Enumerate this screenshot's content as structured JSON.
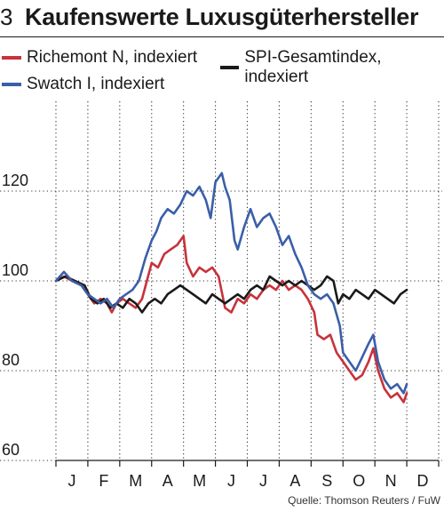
{
  "header": {
    "number": "3",
    "title": "Kaufenswerte Luxusgüterhersteller"
  },
  "source": "Quelle: Thomson Reuters / FuW",
  "chart_data": {
    "type": "line",
    "title": "Kaufenswerte Luxusgüterhersteller",
    "xlabel": "",
    "ylabel": "",
    "x_ticks": [
      "J",
      "F",
      "M",
      "A",
      "M",
      "J",
      "J",
      "A",
      "S",
      "O",
      "N",
      "D"
    ],
    "x_range": [
      0,
      12
    ],
    "y_ticks": [
      60,
      80,
      100,
      120
    ],
    "ylim": [
      60,
      140
    ],
    "grid": {
      "vertical": true,
      "horizontal": true,
      "style": "dotted"
    },
    "legend_placement": "top",
    "series": [
      {
        "name": "Richemont N, indexiert",
        "color": "#c8323a",
        "points": [
          [
            0.0,
            100
          ],
          [
            0.25,
            101
          ],
          [
            0.5,
            100
          ],
          [
            0.8,
            99
          ],
          [
            1.0,
            97
          ],
          [
            1.2,
            95
          ],
          [
            1.4,
            96
          ],
          [
            1.6,
            95
          ],
          [
            1.75,
            93
          ],
          [
            1.9,
            95
          ],
          [
            2.1,
            96
          ],
          [
            2.3,
            95
          ],
          [
            2.5,
            94
          ],
          [
            2.7,
            96
          ],
          [
            2.85,
            100
          ],
          [
            3.0,
            104
          ],
          [
            3.2,
            103
          ],
          [
            3.4,
            106
          ],
          [
            3.6,
            107
          ],
          [
            3.8,
            108
          ],
          [
            4.0,
            110
          ],
          [
            4.1,
            104
          ],
          [
            4.3,
            101
          ],
          [
            4.5,
            103
          ],
          [
            4.7,
            102
          ],
          [
            4.9,
            103
          ],
          [
            5.1,
            101
          ],
          [
            5.3,
            94
          ],
          [
            5.5,
            93
          ],
          [
            5.7,
            96
          ],
          [
            5.9,
            95
          ],
          [
            6.1,
            97
          ],
          [
            6.3,
            96
          ],
          [
            6.5,
            98
          ],
          [
            6.7,
            99
          ],
          [
            6.9,
            98
          ],
          [
            7.1,
            100
          ],
          [
            7.3,
            98
          ],
          [
            7.5,
            99
          ],
          [
            7.7,
            98
          ],
          [
            7.9,
            96
          ],
          [
            8.1,
            93
          ],
          [
            8.2,
            88
          ],
          [
            8.4,
            87
          ],
          [
            8.6,
            88
          ],
          [
            8.8,
            84
          ],
          [
            9.0,
            82
          ],
          [
            9.2,
            80
          ],
          [
            9.4,
            78
          ],
          [
            9.6,
            79
          ],
          [
            9.8,
            82
          ],
          [
            9.95,
            85
          ],
          [
            10.1,
            80
          ],
          [
            10.3,
            76
          ],
          [
            10.5,
            74
          ],
          [
            10.7,
            75
          ],
          [
            10.9,
            73
          ],
          [
            11.0,
            75
          ]
        ]
      },
      {
        "name": "SPI-Gesamtindex, indexiert",
        "color": "#1a1a1a",
        "points": [
          [
            0.0,
            100
          ],
          [
            0.3,
            101
          ],
          [
            0.6,
            100
          ],
          [
            0.9,
            99
          ],
          [
            1.1,
            96
          ],
          [
            1.3,
            95
          ],
          [
            1.5,
            96
          ],
          [
            1.7,
            94
          ],
          [
            1.9,
            95
          ],
          [
            2.1,
            94
          ],
          [
            2.3,
            96
          ],
          [
            2.5,
            95
          ],
          [
            2.7,
            93
          ],
          [
            2.9,
            95
          ],
          [
            3.1,
            96
          ],
          [
            3.3,
            95
          ],
          [
            3.5,
            97
          ],
          [
            3.7,
            98
          ],
          [
            3.9,
            99
          ],
          [
            4.1,
            98
          ],
          [
            4.3,
            97
          ],
          [
            4.5,
            96
          ],
          [
            4.7,
            95
          ],
          [
            4.9,
            97
          ],
          [
            5.1,
            96
          ],
          [
            5.3,
            95
          ],
          [
            5.5,
            96
          ],
          [
            5.7,
            97
          ],
          [
            5.9,
            96
          ],
          [
            6.1,
            98
          ],
          [
            6.3,
            99
          ],
          [
            6.5,
            98
          ],
          [
            6.7,
            101
          ],
          [
            6.9,
            100
          ],
          [
            7.1,
            99
          ],
          [
            7.3,
            100
          ],
          [
            7.5,
            99
          ],
          [
            7.7,
            100
          ],
          [
            7.9,
            99
          ],
          [
            8.1,
            98
          ],
          [
            8.3,
            99
          ],
          [
            8.5,
            101
          ],
          [
            8.7,
            100
          ],
          [
            8.85,
            95
          ],
          [
            9.0,
            97
          ],
          [
            9.2,
            96
          ],
          [
            9.4,
            98
          ],
          [
            9.6,
            97
          ],
          [
            9.8,
            96
          ],
          [
            10.0,
            98
          ],
          [
            10.2,
            97
          ],
          [
            10.4,
            96
          ],
          [
            10.6,
            95
          ],
          [
            10.8,
            97
          ],
          [
            11.0,
            98
          ]
        ]
      },
      {
        "name": "Swatch I, indexiert",
        "color": "#3a5fa8",
        "points": [
          [
            0.0,
            100
          ],
          [
            0.25,
            102
          ],
          [
            0.5,
            100
          ],
          [
            0.8,
            99
          ],
          [
            1.0,
            97
          ],
          [
            1.2,
            96
          ],
          [
            1.4,
            95
          ],
          [
            1.6,
            96
          ],
          [
            1.8,
            94
          ],
          [
            2.0,
            96
          ],
          [
            2.2,
            97
          ],
          [
            2.4,
            98
          ],
          [
            2.6,
            100
          ],
          [
            2.8,
            105
          ],
          [
            3.0,
            109
          ],
          [
            3.15,
            111
          ],
          [
            3.3,
            114
          ],
          [
            3.5,
            116
          ],
          [
            3.7,
            115
          ],
          [
            3.9,
            117
          ],
          [
            4.1,
            120
          ],
          [
            4.3,
            119
          ],
          [
            4.5,
            121
          ],
          [
            4.7,
            118
          ],
          [
            4.85,
            114
          ],
          [
            5.0,
            122
          ],
          [
            5.2,
            124
          ],
          [
            5.3,
            121
          ],
          [
            5.45,
            118
          ],
          [
            5.6,
            109
          ],
          [
            5.7,
            107
          ],
          [
            5.9,
            112
          ],
          [
            6.1,
            116
          ],
          [
            6.3,
            112
          ],
          [
            6.5,
            114
          ],
          [
            6.7,
            115
          ],
          [
            6.9,
            112
          ],
          [
            7.1,
            108
          ],
          [
            7.3,
            110
          ],
          [
            7.5,
            106
          ],
          [
            7.7,
            103
          ],
          [
            7.9,
            99
          ],
          [
            8.1,
            97
          ],
          [
            8.3,
            96
          ],
          [
            8.5,
            97
          ],
          [
            8.7,
            95
          ],
          [
            8.9,
            90
          ],
          [
            9.0,
            84
          ],
          [
            9.2,
            82
          ],
          [
            9.4,
            80
          ],
          [
            9.6,
            83
          ],
          [
            9.8,
            86
          ],
          [
            9.95,
            88
          ],
          [
            10.1,
            82
          ],
          [
            10.3,
            78
          ],
          [
            10.5,
            76
          ],
          [
            10.7,
            77
          ],
          [
            10.9,
            75
          ],
          [
            11.0,
            77
          ]
        ]
      }
    ]
  }
}
